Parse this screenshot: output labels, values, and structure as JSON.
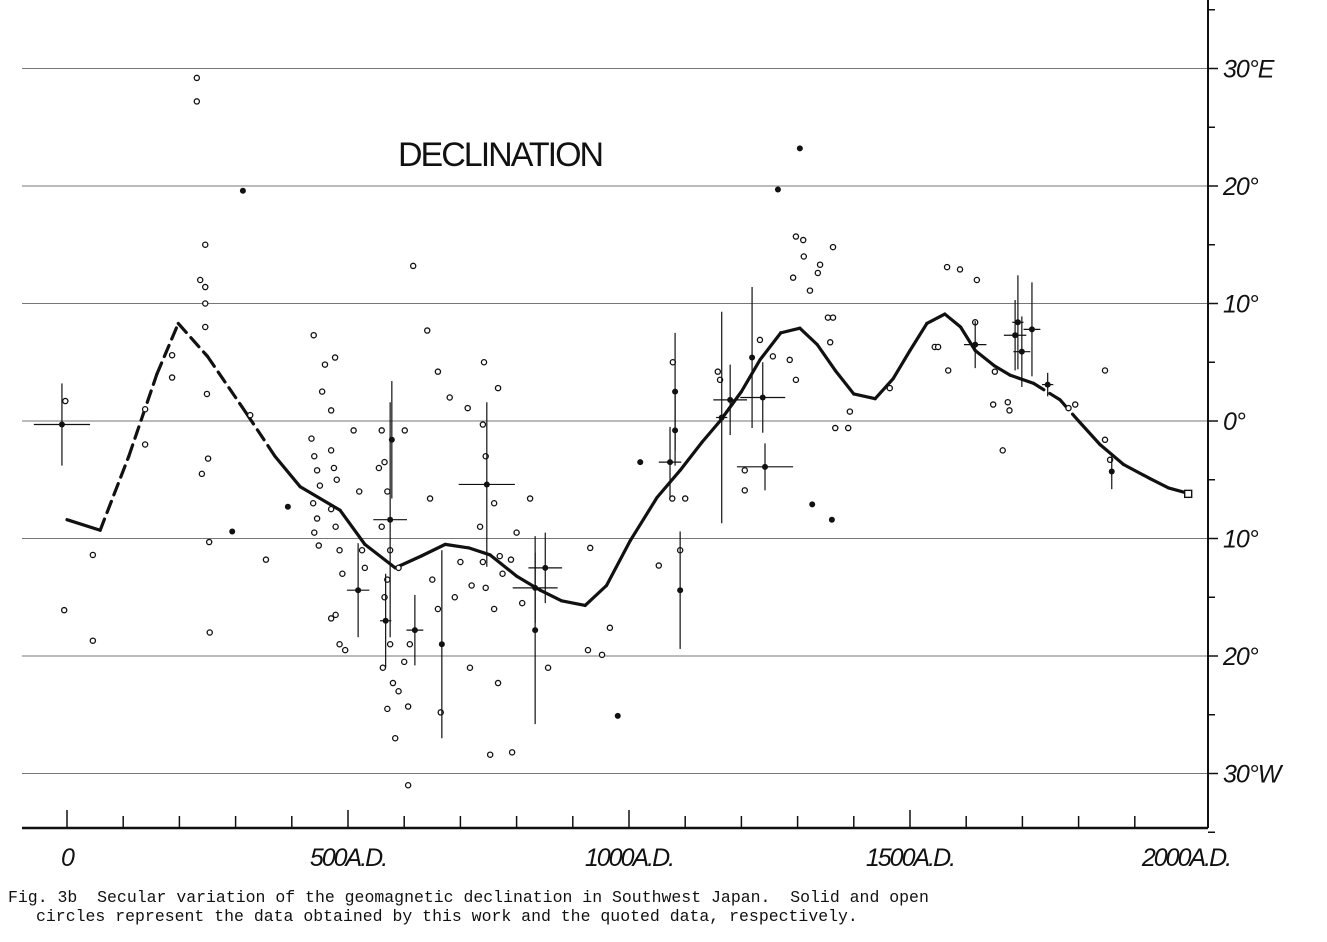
{
  "chart_data": {
    "type": "scatter",
    "title": "DECLINATION",
    "xlabel": "",
    "ylabel": "",
    "xlim": [
      0,
      2020
    ],
    "ylim": [
      -35,
      36
    ],
    "grid": true,
    "x_ticks": [
      {
        "value": 0,
        "label": "0"
      },
      {
        "value": 500,
        "label": "500A.D."
      },
      {
        "value": 1000,
        "label": "1000A.D."
      },
      {
        "value": 1500,
        "label": "1500A.D."
      },
      {
        "value": 2000,
        "label": "2000A.D."
      }
    ],
    "y_ticks": [
      {
        "value": 30,
        "label": "30°E"
      },
      {
        "value": 20,
        "label": "20°"
      },
      {
        "value": 10,
        "label": "10°"
      },
      {
        "value": 0,
        "label": "0°"
      },
      {
        "value": -10,
        "label": "10°"
      },
      {
        "value": -20,
        "label": "20°"
      },
      {
        "value": -30,
        "label": "30°W"
      }
    ],
    "curve": {
      "name": "secular variation curve",
      "points": [
        [
          0,
          -8.4
        ],
        [
          59,
          -9.3
        ],
        [
          110,
          -3
        ],
        [
          160,
          4
        ],
        [
          198,
          8.3
        ],
        [
          250,
          5.5
        ],
        [
          320,
          0.6
        ],
        [
          370,
          -3
        ],
        [
          415,
          -5.6
        ],
        [
          486,
          -7.6
        ],
        [
          530,
          -10.5
        ],
        [
          584,
          -12.5
        ],
        [
          630,
          -11.5
        ],
        [
          673,
          -10.5
        ],
        [
          715,
          -10.8
        ],
        [
          753,
          -11.4
        ],
        [
          800,
          -13.2
        ],
        [
          842,
          -14.4
        ],
        [
          880,
          -15.3
        ],
        [
          922,
          -15.7
        ],
        [
          960,
          -14
        ],
        [
          1002,
          -10.2
        ],
        [
          1050,
          -6.5
        ],
        [
          1091,
          -4.2
        ],
        [
          1130,
          -1.8
        ],
        [
          1162,
          0
        ],
        [
          1200,
          2.5
        ],
        [
          1233,
          5.2
        ],
        [
          1270,
          7.5
        ],
        [
          1304,
          7.9
        ],
        [
          1335,
          6.5
        ],
        [
          1367,
          4.3
        ],
        [
          1400,
          2.3
        ],
        [
          1438,
          1.9
        ],
        [
          1470,
          3.6
        ],
        [
          1500,
          6
        ],
        [
          1530,
          8.3
        ],
        [
          1562,
          9.1
        ],
        [
          1590,
          8
        ],
        [
          1616,
          6
        ],
        [
          1650,
          4.7
        ],
        [
          1678,
          3.9
        ],
        [
          1720,
          3.2
        ],
        [
          1767,
          1.8
        ],
        [
          1800,
          0
        ],
        [
          1838,
          -2
        ],
        [
          1880,
          -3.7
        ],
        [
          1927,
          -4.9
        ],
        [
          1960,
          -5.7
        ],
        [
          1998,
          -6.2
        ]
      ],
      "dashed_ranges": [
        [
          59,
          390
        ],
        [
          1700,
          1790
        ]
      ]
    },
    "series": [
      {
        "name": "open circles (quoted data)",
        "marker": "open-circle",
        "points": [
          [
            -3,
            1.7
          ],
          [
            -5,
            -16.1
          ],
          [
            46,
            -11.4
          ],
          [
            46,
            -18.7
          ],
          [
            139,
            1
          ],
          [
            139,
            -2
          ],
          [
            187,
            5.6
          ],
          [
            187,
            3.7
          ],
          [
            231,
            29.2
          ],
          [
            231,
            27.2
          ],
          [
            246,
            15
          ],
          [
            237,
            12
          ],
          [
            246,
            11.4
          ],
          [
            246,
            10
          ],
          [
            246,
            8
          ],
          [
            249,
            2.3
          ],
          [
            251,
            -3.2
          ],
          [
            240,
            -4.5
          ],
          [
            253,
            -10.3
          ],
          [
            254,
            -18
          ],
          [
            326,
            0.5
          ],
          [
            354,
            -11.8
          ],
          [
            439,
            7.3
          ],
          [
            454,
            2.5
          ],
          [
            459,
            4.8
          ],
          [
            477,
            5.4
          ],
          [
            470,
            0.9
          ],
          [
            435,
            -1.5
          ],
          [
            440,
            -3
          ],
          [
            445,
            -4.2
          ],
          [
            450,
            -5.5
          ],
          [
            438,
            -7
          ],
          [
            445,
            -8.3
          ],
          [
            440,
            -9.5
          ],
          [
            448,
            -10.6
          ],
          [
            470,
            -2.5
          ],
          [
            475,
            -4
          ],
          [
            480,
            -5
          ],
          [
            470,
            -7.5
          ],
          [
            478,
            -9
          ],
          [
            485,
            -11
          ],
          [
            490,
            -13
          ],
          [
            470,
            -16.8
          ],
          [
            478,
            -16.5
          ],
          [
            485,
            -19
          ],
          [
            495,
            -19.5
          ],
          [
            510,
            -0.8
          ],
          [
            520,
            -6
          ],
          [
            525,
            -11
          ],
          [
            530,
            -12.5
          ],
          [
            560,
            -0.8
          ],
          [
            565,
            -3.5
          ],
          [
            570,
            -6
          ],
          [
            555,
            -4
          ],
          [
            560,
            -9
          ],
          [
            575,
            -11
          ],
          [
            590,
            -12.5
          ],
          [
            570,
            -13.5
          ],
          [
            565,
            -15
          ],
          [
            575,
            -19
          ],
          [
            562,
            -21
          ],
          [
            580,
            -22.3
          ],
          [
            570,
            -24.5
          ],
          [
            590,
            -23
          ],
          [
            600,
            -20.5
          ],
          [
            610,
            -19
          ],
          [
            616,
            13.2
          ],
          [
            601,
            -0.8
          ],
          [
            641,
            7.7
          ],
          [
            660,
            4.2
          ],
          [
            646,
            -6.6
          ],
          [
            681,
            2
          ],
          [
            713,
            1.1
          ],
          [
            742,
            5
          ],
          [
            767,
            2.8
          ],
          [
            607,
            -24.3
          ],
          [
            584,
            -27
          ],
          [
            607,
            -31
          ],
          [
            665,
            -24.8
          ],
          [
            717,
            -21
          ],
          [
            753,
            -28.4
          ],
          [
            792,
            -28.2
          ],
          [
            767,
            -22.3
          ],
          [
            650,
            -13.5
          ],
          [
            660,
            -16
          ],
          [
            690,
            -15
          ],
          [
            700,
            -12
          ],
          [
            720,
            -14
          ],
          [
            735,
            -9
          ],
          [
            740,
            -12
          ],
          [
            745,
            -14.2
          ],
          [
            760,
            -16
          ],
          [
            775,
            -13
          ],
          [
            790,
            -11.8
          ],
          [
            800,
            -9.5
          ],
          [
            810,
            -15.5
          ],
          [
            740,
            -0.3
          ],
          [
            745,
            -3
          ],
          [
            760,
            -7
          ],
          [
            770,
            -11.5
          ],
          [
            824,
            -6.6
          ],
          [
            856,
            -21
          ],
          [
            931,
            -10.8
          ],
          [
            966,
            -17.6
          ],
          [
            927,
            -19.5
          ],
          [
            952,
            -19.9
          ],
          [
            1053,
            -12.3
          ],
          [
            1091,
            -11
          ],
          [
            1077,
            -6.6
          ],
          [
            1100,
            -6.6
          ],
          [
            1078,
            5
          ],
          [
            1158,
            4.2
          ],
          [
            1162,
            3.5
          ],
          [
            1206,
            -5.9
          ],
          [
            1206,
            -4.2
          ],
          [
            1233,
            6.9
          ],
          [
            1256,
            5.5
          ],
          [
            1286,
            5.2
          ],
          [
            1297,
            3.5
          ],
          [
            1297,
            15.7
          ],
          [
            1310,
            15.4
          ],
          [
            1311,
            14
          ],
          [
            1292,
            12.2
          ],
          [
            1322,
            11.1
          ],
          [
            1336,
            12.6
          ],
          [
            1340,
            13.3
          ],
          [
            1363,
            14.8
          ],
          [
            1354,
            8.8
          ],
          [
            1363,
            8.8
          ],
          [
            1358,
            6.7
          ],
          [
            1367,
            -0.6
          ],
          [
            1390,
            -0.6
          ],
          [
            1393,
            0.8
          ],
          [
            1464,
            2.8
          ],
          [
            1544,
            6.3
          ],
          [
            1550,
            6.3
          ],
          [
            1566,
            13.1
          ],
          [
            1589,
            12.9
          ],
          [
            1619,
            12
          ],
          [
            1568,
            4.3
          ],
          [
            1616,
            8.4
          ],
          [
            1651,
            4.2
          ],
          [
            1648,
            1.4
          ],
          [
            1665,
            -2.5
          ],
          [
            1674,
            1.6
          ],
          [
            1677,
            0.9
          ],
          [
            1794,
            1.4
          ],
          [
            1782,
            1.1
          ],
          [
            1847,
            4.3
          ],
          [
            1847,
            -1.6
          ],
          [
            1856,
            -3.3
          ],
          [
            1995,
            -6.2
          ]
        ]
      },
      {
        "name": "solid circles (this work)",
        "marker": "solid-circle",
        "points": [
          [
            313,
            19.6
          ],
          [
            294,
            -9.4
          ],
          [
            393,
            -7.3
          ],
          [
            980,
            -25.1
          ],
          [
            1020,
            -3.5
          ],
          [
            1265,
            19.7
          ],
          [
            1304,
            23.2
          ],
          [
            1326,
            -7.1
          ],
          [
            1361,
            -8.4
          ]
        ]
      },
      {
        "name": "data with error bars",
        "marker": "solid-circle",
        "points_with_errors": [
          [
            -9,
            -0.3,
            50,
            3.5
          ],
          [
            578,
            -1.6,
            0,
            5
          ],
          [
            575,
            -8.4,
            30,
            10
          ],
          [
            567,
            -17,
            10,
            4
          ],
          [
            619,
            -17.8,
            15,
            3
          ],
          [
            667,
            -19,
            0,
            8
          ],
          [
            747,
            -5.4,
            50,
            7
          ],
          [
            851,
            -12.5,
            30,
            3
          ],
          [
            833,
            -14.2,
            40,
            3
          ],
          [
            833,
            -17.8,
            0,
            8
          ],
          [
            518,
            -14.4,
            20,
            4
          ],
          [
            1082,
            2.5,
            0,
            5
          ],
          [
            1082,
            -0.8,
            0,
            3
          ],
          [
            1073,
            -3.5,
            20,
            3
          ],
          [
            1091,
            -14.4,
            0,
            5
          ],
          [
            1165,
            0.3,
            10,
            9
          ],
          [
            1180,
            1.8,
            30,
            3
          ],
          [
            1219,
            5.4,
            0,
            6
          ],
          [
            1238,
            2,
            40,
            3
          ],
          [
            1242,
            -3.9,
            50,
            2
          ],
          [
            1616,
            6.5,
            20,
            2
          ],
          [
            1687,
            7.3,
            20,
            3
          ],
          [
            1692,
            8.4,
            10,
            4
          ],
          [
            1699,
            5.9,
            15,
            3
          ],
          [
            1717,
            7.8,
            15,
            4
          ],
          [
            1745,
            3.1,
            10,
            1
          ],
          [
            1859,
            -4.3,
            0,
            1.5
          ]
        ]
      }
    ],
    "annotations": [
      {
        "text": "DECLINATION"
      }
    ]
  },
  "caption": {
    "line1": "Fig. 3b  Secular variation of the geomagnetic declination in Southwest Japan.  Solid and open",
    "line2": "circles represent the data obtained by this work and the quoted data, respectively."
  }
}
